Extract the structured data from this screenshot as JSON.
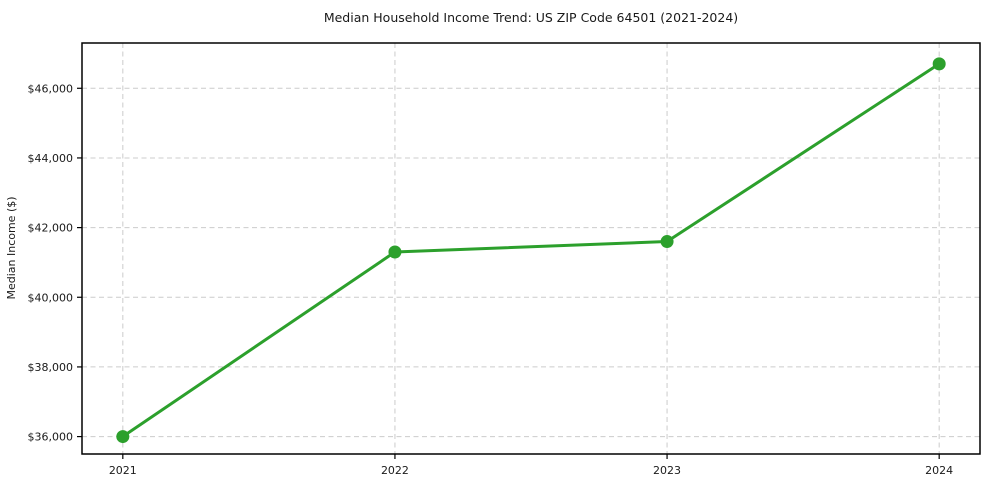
{
  "chart_data": {
    "type": "line",
    "title": "Median Household Income Trend: US ZIP Code 64501 (2021-2024)",
    "xlabel": "",
    "ylabel": "Median Income ($)",
    "x": [
      2021,
      2022,
      2023,
      2024
    ],
    "x_tick_labels": [
      "2021",
      "2022",
      "2023",
      "2024"
    ],
    "series": [
      {
        "name": "Median Income ($)",
        "values": [
          36000,
          41300,
          41600,
          46700
        ],
        "color": "#2ca02c",
        "marker": "circle"
      }
    ],
    "y_ticks": [
      36000,
      38000,
      40000,
      42000,
      44000,
      46000
    ],
    "y_tick_labels": [
      "$36,000",
      "$38,000",
      "$40,000",
      "$42,000",
      "$44,000",
      "$46,000"
    ],
    "xlim": [
      2020.85,
      2024.15
    ],
    "ylim": [
      35500,
      47300
    ],
    "grid": true,
    "grid_style": "dashed",
    "legend_position": "none",
    "colors": {
      "line": "#2ca02c",
      "marker": "#2ca02c",
      "grid": "#cccccc",
      "frame": "#000000",
      "tick": "#000000",
      "text": "#1a1a1a",
      "background": "#ffffff"
    }
  }
}
